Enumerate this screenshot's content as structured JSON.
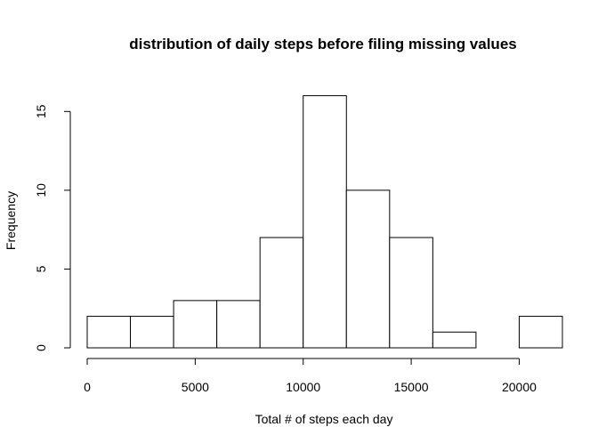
{
  "chart_data": {
    "type": "histogram",
    "title": "distribution of daily steps before filing missing values",
    "xlabel": "Total # of steps each day",
    "ylabel": "Frequency",
    "bins": [
      {
        "start": 0,
        "end": 2000,
        "count": 2
      },
      {
        "start": 2000,
        "end": 4000,
        "count": 2
      },
      {
        "start": 4000,
        "end": 6000,
        "count": 3
      },
      {
        "start": 6000,
        "end": 8000,
        "count": 3
      },
      {
        "start": 8000,
        "end": 10000,
        "count": 7
      },
      {
        "start": 10000,
        "end": 12000,
        "count": 16
      },
      {
        "start": 12000,
        "end": 14000,
        "count": 10
      },
      {
        "start": 14000,
        "end": 16000,
        "count": 7
      },
      {
        "start": 16000,
        "end": 18000,
        "count": 1
      },
      {
        "start": 18000,
        "end": 20000,
        "count": 0
      },
      {
        "start": 20000,
        "end": 22000,
        "count": 2
      }
    ],
    "xticks": [
      0,
      5000,
      10000,
      15000,
      20000
    ],
    "yticks": [
      0,
      5,
      10,
      15
    ],
    "xlim": [
      0,
      22000
    ],
    "ylim": [
      0,
      16
    ],
    "bar_fill": "#ffffff",
    "bar_stroke": "#000000",
    "grid": false
  }
}
